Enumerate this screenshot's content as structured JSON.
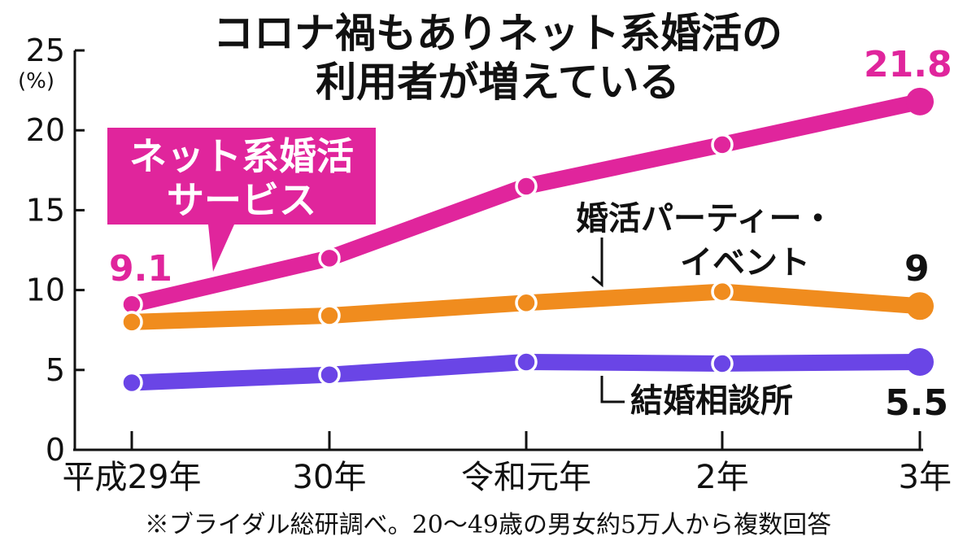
{
  "title_lines": [
    "コロナ禍もありネット系婚活の",
    "利用者が増えている"
  ],
  "note": "※ブライダル総研調べ。20〜49歳の男女約5万人から複数回答",
  "colors": {
    "magenta": "#e0259c",
    "orange": "#f08c1e",
    "purple": "#6a45e6",
    "ink": "#111111"
  },
  "chart_data": {
    "type": "line",
    "categories": [
      "平成29年",
      "30年",
      "令和元年",
      "2年",
      "3年"
    ],
    "ylim": [
      0,
      25
    ],
    "yticks": [
      "0",
      "5",
      "10",
      "15",
      "20",
      "25"
    ],
    "yunit": "(%)",
    "series": [
      {
        "name": "ネット系婚活サービス",
        "name_lines": [
          "ネット系婚活",
          "サービス"
        ],
        "color": "#e0259c",
        "values": [
          9.1,
          12.0,
          16.5,
          19.1,
          21.8
        ],
        "labels": {
          "first": "9.1",
          "last": "21.8"
        }
      },
      {
        "name": "婚活パーティー・イベント",
        "name_lines": [
          "婚活パーティー・",
          "イベント"
        ],
        "color": "#f08c1e",
        "values": [
          8.0,
          8.4,
          9.2,
          9.9,
          9.0
        ],
        "labels": {
          "last": "9"
        }
      },
      {
        "name": "結婚相談所",
        "name_lines": [
          "結婚相談所"
        ],
        "color": "#6a45e6",
        "values": [
          4.2,
          4.7,
          5.5,
          5.4,
          5.5
        ],
        "labels": {
          "last": "5.5"
        }
      }
    ]
  }
}
